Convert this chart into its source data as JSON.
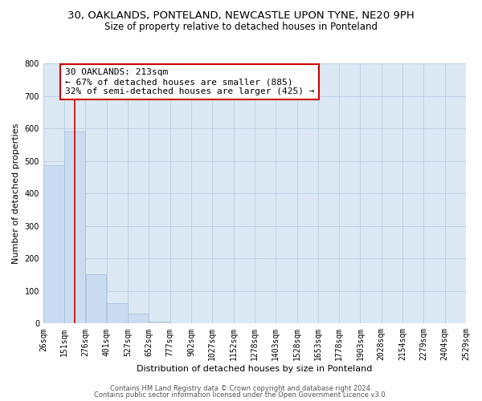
{
  "title1": "30, OAKLANDS, PONTELAND, NEWCASTLE UPON TYNE, NE20 9PH",
  "title2": "Size of property relative to detached houses in Ponteland",
  "xlabel": "Distribution of detached houses by size in Ponteland",
  "ylabel": "Number of detached properties",
  "bar_values": [
    487,
    590,
    152,
    62,
    30,
    5,
    0,
    0,
    0,
    0,
    0,
    0,
    0,
    0,
    0,
    0,
    0,
    0,
    0,
    0
  ],
  "bin_edges": [
    26,
    151,
    276,
    401,
    527,
    652,
    777,
    902,
    1027,
    1152,
    1278,
    1403,
    1528,
    1653,
    1778,
    1903,
    2028,
    2154,
    2279,
    2404,
    2529
  ],
  "tick_labels": [
    "26sqm",
    "151sqm",
    "276sqm",
    "401sqm",
    "527sqm",
    "652sqm",
    "777sqm",
    "902sqm",
    "1027sqm",
    "1152sqm",
    "1278sqm",
    "1403sqm",
    "1528sqm",
    "1653sqm",
    "1778sqm",
    "1903sqm",
    "2028sqm",
    "2154sqm",
    "2279sqm",
    "2404sqm",
    "2529sqm"
  ],
  "bar_color": "#ccdcf0",
  "bar_edge_color": "#a0bcd8",
  "vline_x": 213,
  "vline_color": "#cc0000",
  "annotation_line1": "30 OAKLANDS: 213sqm",
  "annotation_line2": "← 67% of detached houses are smaller (885)",
  "annotation_line3": "32% of semi-detached houses are larger (425) →",
  "annotation_box_color": "#cc0000",
  "ylim": [
    0,
    800
  ],
  "yticks": [
    0,
    100,
    200,
    300,
    400,
    500,
    600,
    700,
    800
  ],
  "grid_color": "#b8cfe0",
  "bg_color": "#dce8f4",
  "footer1": "Contains HM Land Registry data © Crown copyright and database right 2024.",
  "footer2": "Contains public sector information licensed under the Open Government Licence v3.0.",
  "title1_fontsize": 9.5,
  "title2_fontsize": 8.5,
  "xlabel_fontsize": 8,
  "ylabel_fontsize": 8,
  "tick_fontsize": 7,
  "annotation_fontsize": 8,
  "footer_fontsize": 6
}
